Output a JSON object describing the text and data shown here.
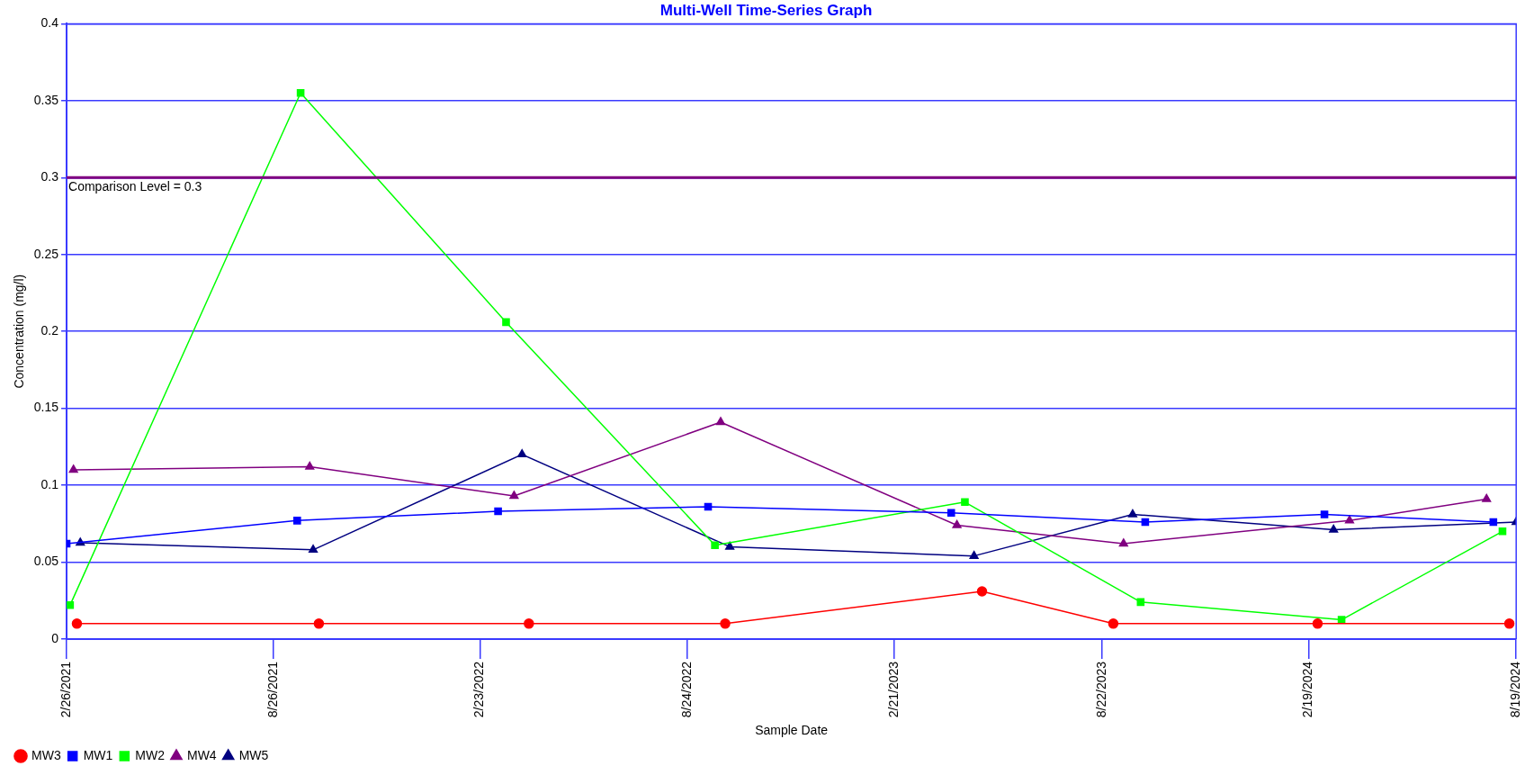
{
  "chart_data": {
    "type": "line",
    "title": "Multi-Well Time-Series Graph",
    "xlabel": "Sample Date",
    "ylabel": "Concentration (mg/l)",
    "xlim": [
      "2021-02-26",
      "2024-08-19"
    ],
    "xticks": [
      {
        "value": "2021-02-26",
        "label": "2/26/2021"
      },
      {
        "value": "2021-08-26",
        "label": "8/26/2021"
      },
      {
        "value": "2022-02-23",
        "label": "2/23/2022"
      },
      {
        "value": "2022-08-24",
        "label": "8/24/2022"
      },
      {
        "value": "2023-02-21",
        "label": "2/21/2023"
      },
      {
        "value": "2023-08-22",
        "label": "8/22/2023"
      },
      {
        "value": "2024-02-19",
        "label": "2/19/2024"
      },
      {
        "value": "2024-08-19",
        "label": "8/19/2024"
      }
    ],
    "ylim": [
      0,
      0.4
    ],
    "yticks": [
      0,
      0.05,
      0.1,
      0.15,
      0.2,
      0.25,
      0.3,
      0.35,
      0.4
    ],
    "grid": "y",
    "legend": "bottom left",
    "line_style": "solid",
    "ref_lines": [
      {
        "axis": "y",
        "value": 0.3,
        "label": "Comparison Level = 0.3",
        "color": "#800080"
      }
    ],
    "series": [
      {
        "name": "MW3",
        "color": "#ff0000",
        "marker": "circle",
        "x": [
          "2021-03-07",
          "2021-10-05",
          "2022-04-07",
          "2022-09-26",
          "2023-05-09",
          "2023-09-01",
          "2024-02-27",
          "2024-08-13"
        ],
        "values": [
          0.01,
          0.01,
          0.01,
          0.01,
          0.031,
          0.01,
          0.01,
          0.01
        ]
      },
      {
        "name": "MW1",
        "color": "#0000ff",
        "marker": "square",
        "x": [
          "2021-02-26",
          "2021-09-16",
          "2022-03-11",
          "2022-09-11",
          "2023-04-12",
          "2023-09-29",
          "2024-03-04",
          "2024-07-30"
        ],
        "values": [
          0.062,
          0.077,
          0.083,
          0.086,
          0.082,
          0.076,
          0.081,
          0.076
        ]
      },
      {
        "name": "MW2",
        "color": "#00ff00",
        "marker": "square",
        "x": [
          "2021-03-01",
          "2021-09-19",
          "2022-03-18",
          "2022-09-17",
          "2023-04-24",
          "2023-09-25",
          "2024-03-19",
          "2024-08-07"
        ],
        "values": [
          0.022,
          0.355,
          0.206,
          0.061,
          0.089,
          0.024,
          0.0125,
          0.07
        ]
      },
      {
        "name": "MW4",
        "color": "#800080",
        "marker": "triangle",
        "x": [
          "2021-03-04",
          "2021-09-27",
          "2022-03-25",
          "2022-09-22",
          "2023-04-17",
          "2023-09-10",
          "2024-03-26",
          "2024-07-24"
        ],
        "values": [
          0.11,
          0.112,
          0.093,
          0.141,
          0.074,
          0.062,
          0.077,
          0.091
        ]
      },
      {
        "name": "MW5",
        "color": "#000080",
        "marker": "triangle",
        "x": [
          "2021-03-10",
          "2021-09-30",
          "2022-04-01",
          "2022-09-30",
          "2023-05-02",
          "2023-09-18",
          "2024-03-12",
          "2024-08-19"
        ],
        "values": [
          0.0625,
          0.058,
          0.12,
          0.06,
          0.054,
          0.081,
          0.071,
          0.076
        ]
      }
    ]
  }
}
